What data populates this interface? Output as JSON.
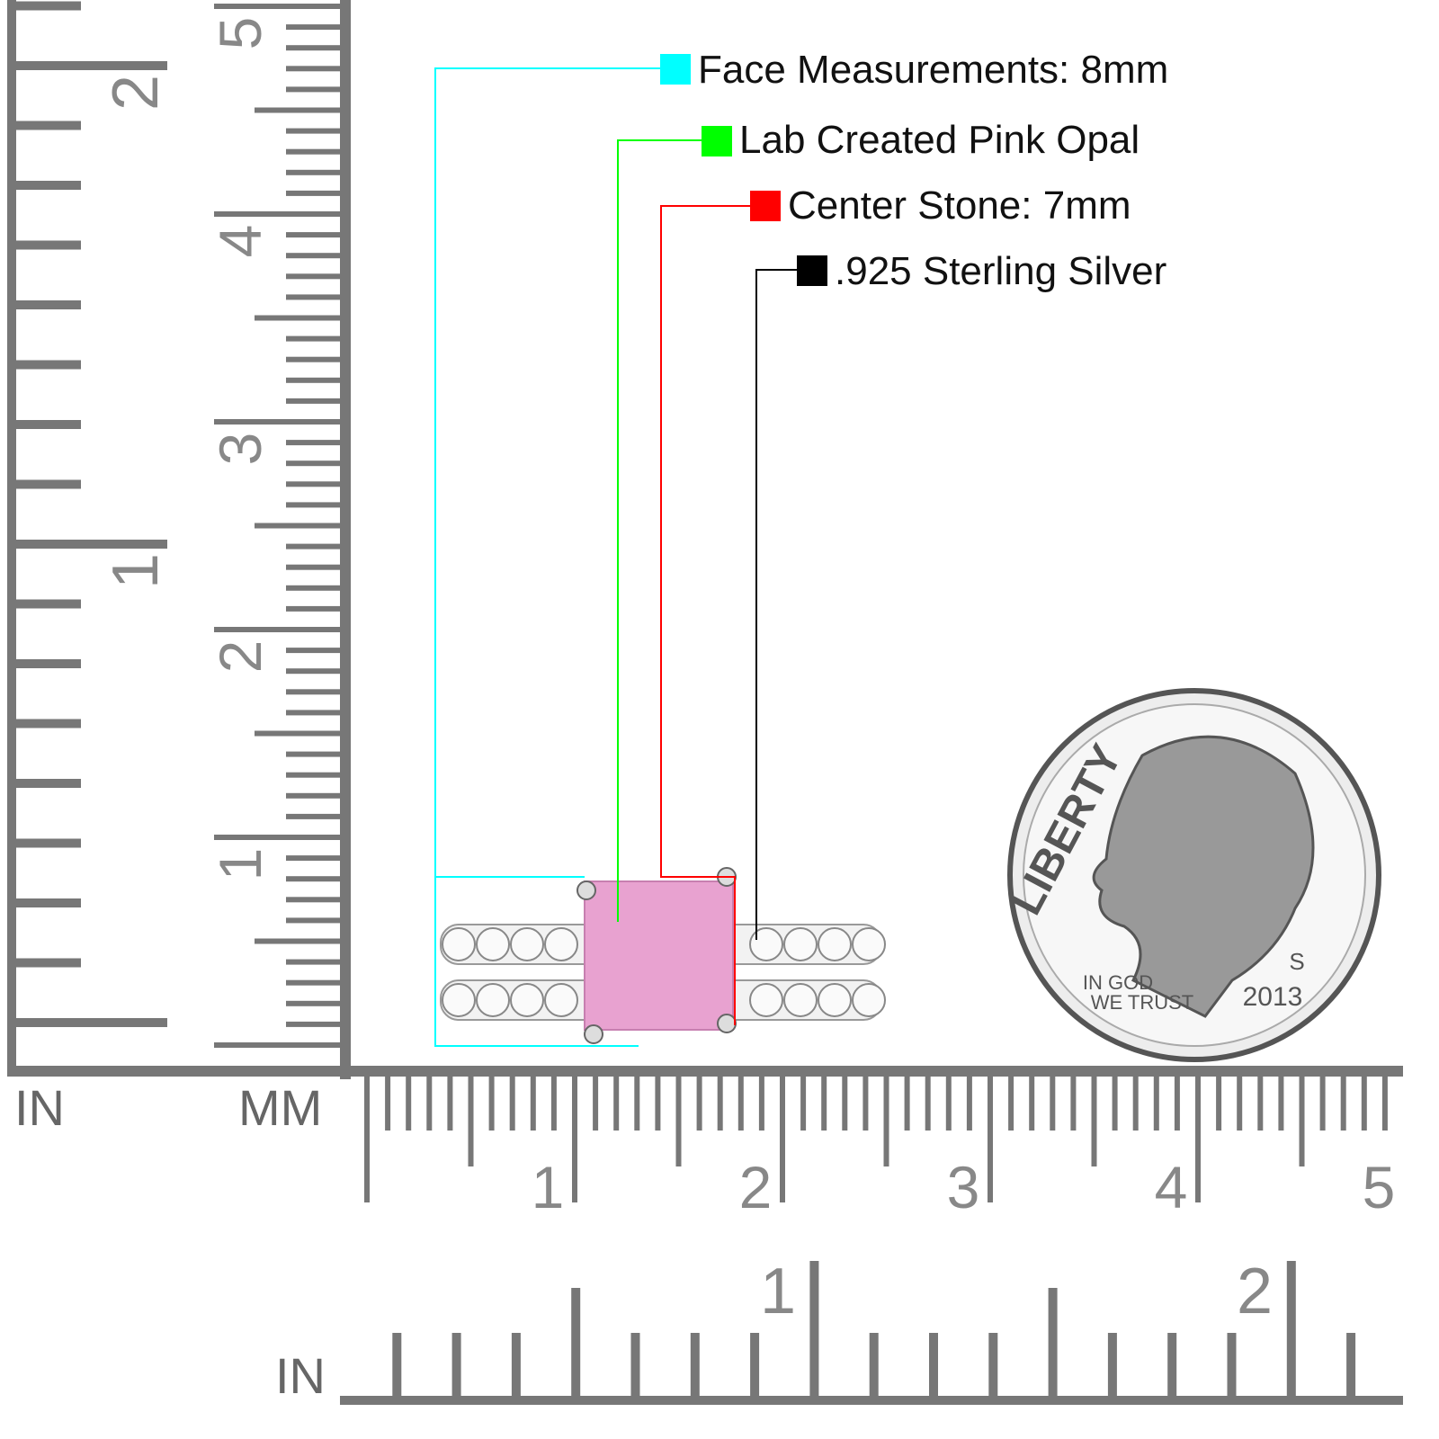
{
  "callouts": [
    {
      "text": "Face Measurements: 8mm",
      "color": "#00ffff"
    },
    {
      "text": "Lab Created Pink Opal",
      "color": "#00ff00"
    },
    {
      "text": "Center Stone: 7mm",
      "color": "#ff0000"
    },
    {
      "text": ".925 Sterling Silver",
      "color": "#000000"
    }
  ],
  "rulers": {
    "left_inch_label": "IN",
    "left_mm_label": "MM",
    "bottom_inch_label": "IN",
    "left_inch_numbers": [
      "1",
      "2"
    ],
    "left_cm_numbers": [
      "1",
      "2",
      "3",
      "4",
      "5"
    ],
    "bottom_cm_numbers": [
      "1",
      "2",
      "3",
      "4",
      "5"
    ],
    "bottom_inch_numbers": [
      "1",
      "2"
    ],
    "color": "#777777"
  },
  "coin": {
    "top_text": "LIBERTY",
    "motto_line1": "IN GOD",
    "motto_line2": "WE TRUST",
    "year": "2013",
    "mint_mark": "S"
  },
  "stone_color": "#e8a2d0"
}
